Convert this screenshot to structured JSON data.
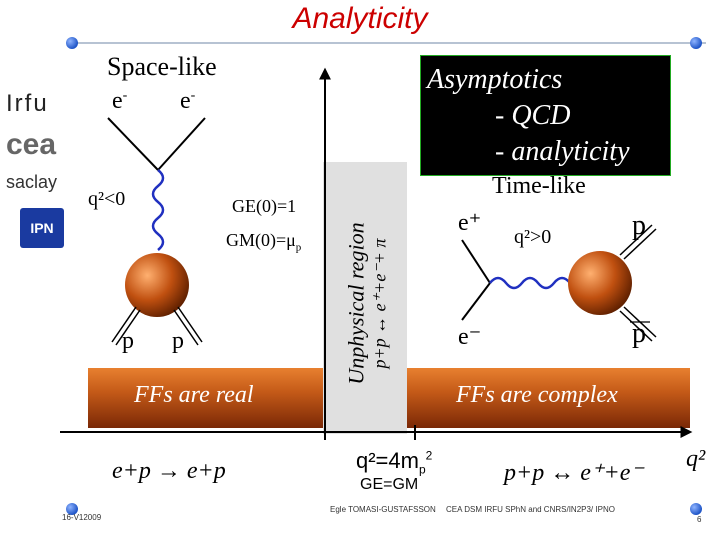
{
  "title": "Analyticity",
  "spacelike": {
    "label": "Space-like",
    "e_left": "e",
    "e_right": "e",
    "minus": "-",
    "q2": "q²<0",
    "ge": "GE(0)=1",
    "gm": "GM(0)=μ",
    "gm_sub": "p",
    "p_left": "p",
    "p_right": "p",
    "ff": "FFs are real",
    "process": "e+p → e+p"
  },
  "asymptotics": {
    "line1": "Asymptotics",
    "line2": "- QCD",
    "line3": "- analyticity"
  },
  "unphysical": {
    "line1": "Unphysical region",
    "line2": "p+p ↔ e⁺+e⁻+ π"
  },
  "timelike": {
    "label": "Time-like",
    "e_plus": "e⁺",
    "e_minus": "e⁻",
    "q2": "q²>0",
    "p_top": "p",
    "p_bottom": "p",
    "ff": "FFs are complex",
    "process": "p+p ↔ e⁺+e⁻"
  },
  "threshold": {
    "label": "q²=4m",
    "sub": "p",
    "sup": "2",
    "ge_gm": "GE=GM"
  },
  "axis_label": "q²",
  "footer": {
    "date": "16-V12009",
    "author": "Egle TOMASI-GUSTAFSSON",
    "affil": "CEA DSM IRFU SPhN and CNRS/IN2P3/ IPNO",
    "page": "6"
  },
  "logos": {
    "irfu": "Irfu",
    "cea": "cea",
    "saclay": "saclay",
    "ipn": "IPN"
  },
  "colors": {
    "title": "#cc0000",
    "photon": "#2030c0",
    "nucleon": "#c05010"
  }
}
